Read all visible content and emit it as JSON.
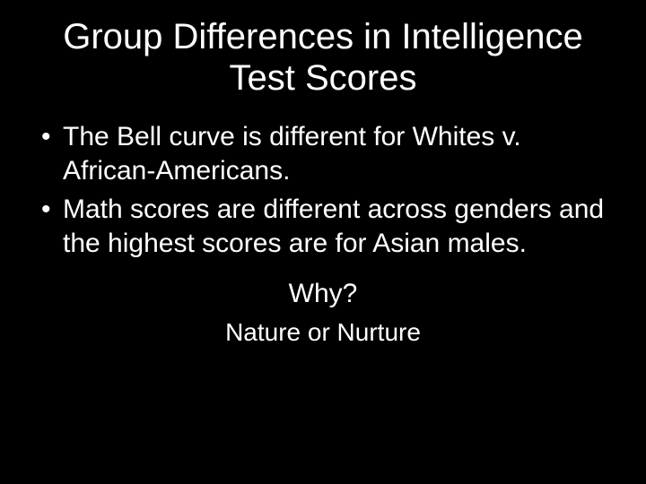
{
  "slide": {
    "background_color": "#000000",
    "text_color": "#ffffff",
    "font_family": "Comic Sans MS",
    "title": {
      "text": "Group Differences in Intelligence Test Scores",
      "fontsize": 40,
      "align": "center"
    },
    "bullets": [
      "The Bell curve is different for Whites v. African-Americans.",
      "Math scores are different across genders and the highest scores are for Asian males."
    ],
    "bullet_fontsize": 30,
    "centered": {
      "line1": "Why?",
      "line1_fontsize": 30,
      "line2": "Nature or Nurture",
      "line2_fontsize": 28
    }
  }
}
